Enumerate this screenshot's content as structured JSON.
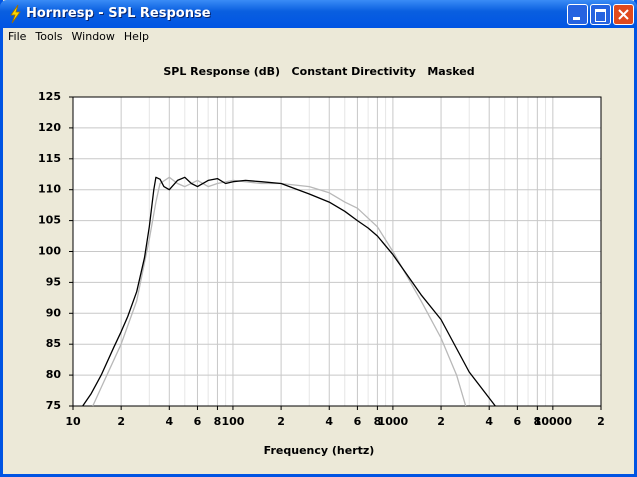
{
  "window": {
    "title": "Hornresp - SPL Response",
    "menu": [
      "File",
      "Tools",
      "Window",
      "Help"
    ]
  },
  "chart_data": {
    "type": "line",
    "title": "SPL Response (dB)   Constant Directivity   Masked",
    "x_label": "Frequency (hertz)",
    "x_scale": "log",
    "xlim": [
      10,
      20000
    ],
    "ylim": [
      75,
      125
    ],
    "yticks": [
      75,
      80,
      85,
      90,
      95,
      100,
      105,
      110,
      115,
      120,
      125
    ],
    "xticks": [
      10,
      {
        "value": 20,
        "label": "2"
      },
      {
        "value": 40,
        "label": "4"
      },
      {
        "value": 60,
        "label": "6"
      },
      {
        "value": 80,
        "label": "8"
      },
      100,
      {
        "value": 200,
        "label": "2"
      },
      {
        "value": 400,
        "label": "4"
      },
      {
        "value": 600,
        "label": "6"
      },
      {
        "value": 800,
        "label": "8"
      },
      1000,
      {
        "value": 2000,
        "label": "2"
      },
      {
        "value": 4000,
        "label": "4"
      },
      {
        "value": 6000,
        "label": "6"
      },
      {
        "value": 8000,
        "label": "8"
      },
      10000,
      {
        "value": 20000,
        "label": "2"
      }
    ],
    "xminor_ticks": [
      30,
      50,
      70,
      90,
      300,
      500,
      700,
      900,
      3000,
      5000,
      7000,
      9000
    ],
    "grid": true,
    "series": [
      {
        "color": "#000000",
        "x": [
          11.5,
          13,
          15,
          18,
          20,
          22,
          25,
          28,
          30,
          32,
          33,
          35,
          37,
          40,
          45,
          50,
          55,
          60,
          70,
          80,
          90,
          100,
          120,
          150,
          200,
          300,
          400,
          500,
          600,
          700,
          800,
          1000,
          1500,
          2000,
          3000,
          4370
        ],
        "values": [
          75,
          77,
          80,
          84.5,
          87,
          89.5,
          93.5,
          99,
          104,
          110,
          112,
          111.7,
          110.5,
          110,
          111.5,
          112,
          111,
          110.5,
          111.5,
          111.8,
          111,
          111.3,
          111.5,
          111.3,
          111,
          109.3,
          108,
          106.5,
          105,
          103.8,
          102.5,
          99.5,
          93,
          89,
          80.5,
          75
        ]
      },
      {
        "color": "#b8b8b8",
        "x": [
          13.3,
          15,
          20,
          25,
          30,
          33,
          35,
          40,
          45,
          50,
          60,
          70,
          80,
          100,
          150,
          200,
          300,
          400,
          500,
          600,
          800,
          1000,
          1500,
          2000,
          2500,
          2850
        ],
        "values": [
          75,
          78,
          85,
          92,
          102,
          108,
          111,
          112,
          111,
          110.5,
          111.5,
          110.5,
          111,
          111.5,
          111,
          111,
          110.5,
          109.5,
          108,
          107,
          104,
          100,
          92,
          86,
          80,
          75
        ]
      }
    ]
  }
}
